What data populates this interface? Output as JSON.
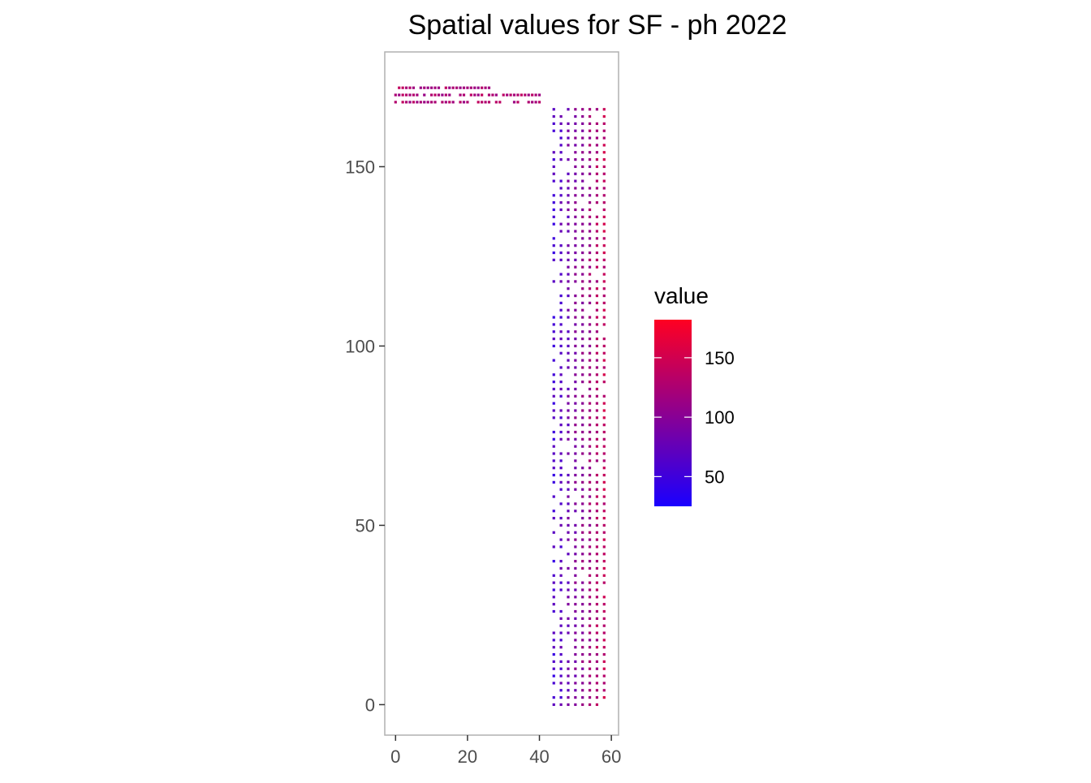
{
  "chart_data": {
    "type": "heatmap",
    "title": "Spatial values for SF - ph 2022",
    "xlabel": "",
    "ylabel": "",
    "xlim": [
      -3,
      62
    ],
    "ylim": [
      -8.5,
      182
    ],
    "x_ticks": [
      0,
      20,
      40,
      60
    ],
    "y_ticks": [
      0,
      50,
      100,
      150
    ],
    "x_tick_labels": [
      "0",
      "20",
      "40",
      "60"
    ],
    "y_tick_labels": [
      "0",
      "50",
      "100",
      "150"
    ],
    "grid": false,
    "legend": {
      "title": "value",
      "placement": "right",
      "range": [
        25,
        182
      ],
      "breaks": [
        50,
        100,
        150
      ],
      "break_labels": [
        "50",
        "100",
        "150"
      ],
      "low_color": "#1a00ff",
      "high_color": "#ff0022"
    },
    "point_spacing": 2,
    "columns_main_x": [
      44,
      46,
      48,
      50,
      52,
      54,
      56,
      58
    ],
    "rows_main_y_range": [
      0,
      166
    ],
    "rows_top_y": [
      168,
      170,
      172
    ],
    "value_range_main": [
      30,
      140
    ],
    "value_range_top": [
      110,
      140
    ]
  }
}
